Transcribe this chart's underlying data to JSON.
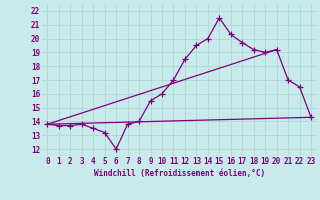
{
  "bg_color": "#c8eaea",
  "line_color": "#800080",
  "grid_color": "#b0d8d8",
  "xlabel": "Windchill (Refroidissement éolien,°C)",
  "xlim": [
    -0.5,
    23.5
  ],
  "ylim": [
    11.5,
    22.5
  ],
  "yticks": [
    12,
    13,
    14,
    15,
    16,
    17,
    18,
    19,
    20,
    21,
    22
  ],
  "xticks": [
    0,
    1,
    2,
    3,
    4,
    5,
    6,
    7,
    8,
    9,
    10,
    11,
    12,
    13,
    14,
    15,
    16,
    17,
    18,
    19,
    20,
    21,
    22,
    23
  ],
  "main_line_x": [
    0,
    1,
    2,
    3,
    4,
    5,
    6,
    7,
    8,
    9,
    10,
    11,
    12,
    13,
    14,
    15,
    16,
    17,
    18,
    19,
    20,
    21,
    22,
    23
  ],
  "main_line_y": [
    13.8,
    13.7,
    13.7,
    13.8,
    13.5,
    13.2,
    12.0,
    13.8,
    14.0,
    15.5,
    16.0,
    17.0,
    18.5,
    19.5,
    20.0,
    21.5,
    20.3,
    19.7,
    19.2,
    19.0,
    19.2,
    17.0,
    16.5,
    14.3
  ],
  "line2_x": [
    0,
    23
  ],
  "line2_y": [
    13.8,
    14.3
  ],
  "line3_x": [
    0,
    20
  ],
  "line3_y": [
    13.8,
    19.2
  ],
  "marker": "+",
  "markersize": 4,
  "linewidth": 0.9,
  "tick_fontsize": 5.5,
  "xlabel_fontsize": 5.5
}
